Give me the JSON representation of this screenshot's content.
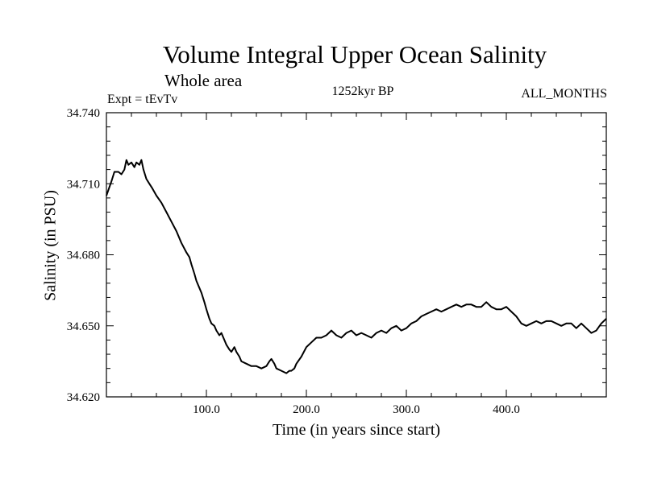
{
  "header": {
    "title": "Volume Integral Upper Ocean Salinity",
    "subtitle": "Whole area",
    "experiment": "Expt = tEvTv",
    "period": "1252kyr BP",
    "months": "ALL_MONTHS"
  },
  "chart_data": {
    "type": "line",
    "title": "Volume Integral Upper Ocean Salinity",
    "xlabel": "Time (in years since start)",
    "ylabel": "Salinity (in PSU)",
    "xlim": [
      0,
      500
    ],
    "ylim": [
      34.62,
      34.74
    ],
    "x_ticks": [
      100,
      200,
      300,
      400
    ],
    "x_tick_labels": [
      "100.0",
      "200.0",
      "300.0",
      "400.0"
    ],
    "y_ticks": [
      34.62,
      34.65,
      34.68,
      34.71,
      34.74
    ],
    "y_tick_labels": [
      "34.620",
      "34.650",
      "34.680",
      "34.710",
      "34.740"
    ],
    "grid": false,
    "series": [
      {
        "name": "Salinity",
        "x": [
          0,
          5,
          8,
          12,
          15,
          18,
          20,
          22,
          25,
          28,
          30,
          33,
          35,
          37,
          40,
          43,
          46,
          50,
          55,
          60,
          65,
          70,
          75,
          80,
          83,
          85,
          88,
          90,
          93,
          95,
          98,
          100,
          103,
          105,
          108,
          110,
          113,
          115,
          118,
          120,
          123,
          125,
          128,
          130,
          133,
          135,
          140,
          145,
          150,
          155,
          160,
          163,
          165,
          168,
          170,
          175,
          180,
          183,
          185,
          188,
          190,
          195,
          200,
          205,
          210,
          215,
          220,
          225,
          230,
          235,
          240,
          245,
          250,
          255,
          260,
          265,
          270,
          275,
          280,
          285,
          290,
          295,
          300,
          305,
          310,
          315,
          320,
          325,
          330,
          335,
          340,
          345,
          350,
          355,
          360,
          365,
          370,
          375,
          380,
          385,
          390,
          395,
          400,
          405,
          410,
          415,
          420,
          425,
          430,
          435,
          440,
          445,
          450,
          455,
          460,
          465,
          470,
          475,
          480,
          485,
          490,
          495,
          500
        ],
        "values": [
          34.705,
          34.711,
          34.715,
          34.715,
          34.714,
          34.716,
          34.72,
          34.718,
          34.719,
          34.717,
          34.719,
          34.718,
          34.72,
          34.716,
          34.712,
          34.71,
          34.708,
          34.705,
          34.702,
          34.698,
          34.694,
          34.69,
          34.685,
          34.681,
          34.679,
          34.676,
          34.672,
          34.669,
          34.666,
          34.664,
          34.66,
          34.657,
          34.653,
          34.651,
          34.65,
          34.648,
          34.646,
          34.647,
          34.644,
          34.642,
          34.64,
          34.639,
          34.641,
          34.639,
          34.637,
          34.635,
          34.634,
          34.633,
          34.633,
          34.632,
          34.633,
          34.635,
          34.636,
          34.634,
          34.632,
          34.631,
          34.63,
          34.631,
          34.631,
          34.632,
          34.634,
          34.637,
          34.641,
          34.643,
          34.645,
          34.645,
          34.646,
          34.648,
          34.646,
          34.645,
          34.647,
          34.648,
          34.646,
          34.647,
          34.646,
          34.645,
          34.647,
          34.648,
          34.647,
          34.649,
          34.65,
          34.648,
          34.649,
          34.651,
          34.652,
          34.654,
          34.655,
          34.656,
          34.657,
          34.656,
          34.657,
          34.658,
          34.659,
          34.658,
          34.659,
          34.659,
          34.658,
          34.658,
          34.66,
          34.658,
          34.657,
          34.657,
          34.658,
          34.656,
          34.654,
          34.651,
          34.65,
          34.651,
          34.652,
          34.651,
          34.652,
          34.652,
          34.651,
          34.65,
          34.651,
          34.651,
          34.649,
          34.651,
          34.649,
          34.647,
          34.648,
          34.651,
          34.653
        ]
      }
    ]
  }
}
